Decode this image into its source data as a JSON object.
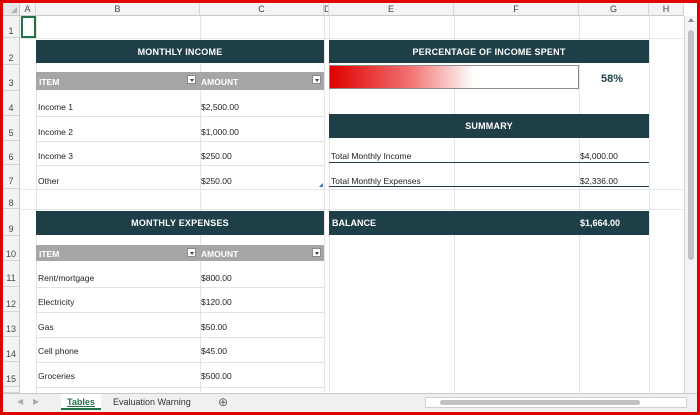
{
  "columns": [
    "A",
    "B",
    "C",
    "D",
    "E",
    "F",
    "G",
    "H"
  ],
  "rows": [
    "1",
    "2",
    "3",
    "4",
    "5",
    "6",
    "7",
    "8",
    "9",
    "10",
    "11",
    "12",
    "13",
    "14",
    "15"
  ],
  "income": {
    "title": "MONTHLY INCOME",
    "col_item": "ITEM",
    "col_amount": "AMOUNT",
    "rows": [
      {
        "item": "Income 1",
        "amount": "$2,500.00"
      },
      {
        "item": "Income 2",
        "amount": "$1,000.00"
      },
      {
        "item": "Income 3",
        "amount": "$250.00"
      },
      {
        "item": "Other",
        "amount": "$250.00"
      }
    ]
  },
  "expenses": {
    "title": "MONTHLY EXPENSES",
    "col_item": "ITEM",
    "col_amount": "AMOUNT",
    "rows": [
      {
        "item": "Rent/mortgage",
        "amount": "$800.00"
      },
      {
        "item": "Electricity",
        "amount": "$120.00"
      },
      {
        "item": "Gas",
        "amount": "$50.00"
      },
      {
        "item": "Cell phone",
        "amount": "$45.00"
      },
      {
        "item": "Groceries",
        "amount": "$500.00"
      }
    ]
  },
  "percentage": {
    "title": "PERCENTAGE OF INCOME SPENT",
    "value_label": "58%",
    "fill_fraction": 0.58
  },
  "summary": {
    "title": "SUMMARY",
    "rows": [
      {
        "label": "Total Monthly Income",
        "value": "$4,000.00"
      },
      {
        "label": "Total Monthly Expenses",
        "value": "$2,336.00"
      }
    ]
  },
  "balance": {
    "label": "BALANCE",
    "value": "$1,664.00"
  },
  "tabs": [
    "Tables",
    "Evaluation Warning"
  ],
  "add_sheet_glyph": "⊕",
  "colors": {
    "header": "#1e3f47",
    "accent_red": "#e00000",
    "excel_green": "#217346"
  }
}
